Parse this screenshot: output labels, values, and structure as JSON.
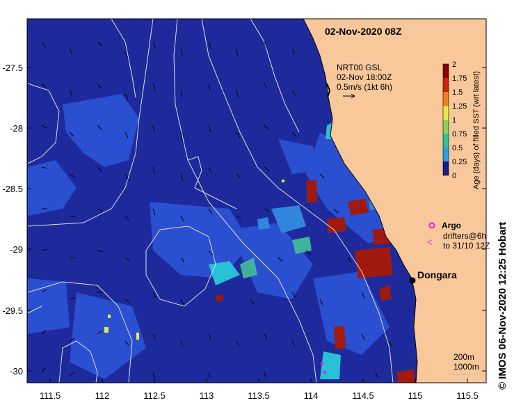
{
  "title": "02-Nov-2020 08Z",
  "product_note": {
    "line1": "NRT00 GSL",
    "line2": "02-Nov 18:00Z",
    "line3": "0.5m/s (1kt 6h)"
  },
  "x_ticks": [
    "111.5",
    "112",
    "112.5",
    "113",
    "113.5",
    "114",
    "114.5",
    "115",
    "115.5"
  ],
  "y_ticks": [
    "-27.5",
    "-28",
    "-28.5",
    "-29",
    "-29.5",
    "-30"
  ],
  "colorbar": {
    "label": "Age (days) of filled SST (wrt latest)",
    "ticks": [
      "2",
      "1.75",
      "1.5",
      "1.25",
      "1",
      "0.75",
      "0.5",
      "0.25",
      "0"
    ]
  },
  "legend": {
    "argo_label": "Argo",
    "drifters_line1": "drifters@6h",
    "drifters_line2": "to 31/10 12Z"
  },
  "place_label": "Dongara",
  "contour_legend": {
    "line1": "200m",
    "line2": "1000m"
  },
  "credit": "© IMOS 06-Nov-2020 12:25 Hobart",
  "colors": {
    "deep": "#1e2a9c",
    "mid": "#2a4fd0",
    "cyan": "#27c1d6",
    "teal": "#3fb39a",
    "yellow": "#e8e84a",
    "red": "#a01a10",
    "land": "#f8c89a",
    "argo": "#e020e0"
  }
}
